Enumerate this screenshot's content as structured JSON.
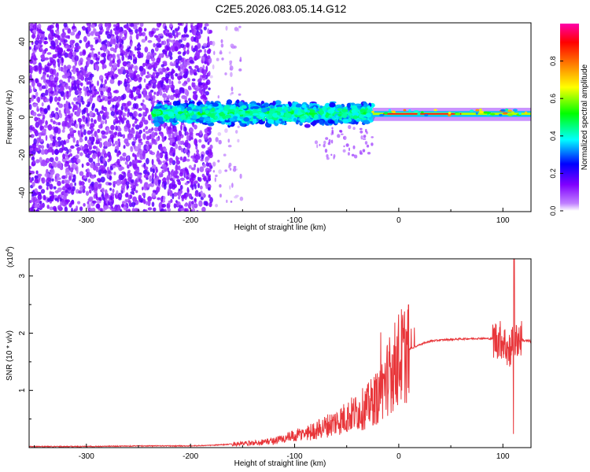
{
  "title": "C2E5.2026.083.05.14.G12",
  "chart_data": [
    {
      "type": "heatmap",
      "xlabel": "Height of straight line (km)",
      "ylabel": "Frequency (Hz)",
      "xlim": [
        -355,
        127
      ],
      "ylim": [
        -50,
        50
      ],
      "xticks": [
        -300,
        -200,
        -100,
        0,
        100
      ],
      "yticks": [
        -40,
        -20,
        0,
        20,
        40
      ],
      "colorbar": {
        "label": "Normalized spectral amplitude",
        "range": [
          0,
          1
        ],
        "ticks": [
          "0.0",
          "0.2",
          "0.4",
          "0.6",
          "0.8"
        ],
        "tick_values": [
          0.0,
          0.2,
          0.4,
          0.6,
          0.8
        ],
        "colors": [
          "#ffffff",
          "#c080ff",
          "#8000ff",
          "#0000ff",
          "#00ffff",
          "#00ff00",
          "#ffff00",
          "#ff8000",
          "#ff0000",
          "#ff00aa"
        ]
      },
      "regions": [
        {
          "name": "scattered noise",
          "x": [
            -355,
            -180
          ],
          "freq": [
            -50,
            50
          ],
          "amplitude": [
            0.05,
            0.18
          ]
        },
        {
          "name": "sparse noise tail",
          "x": [
            -180,
            -150
          ],
          "freq": [
            -50,
            50
          ],
          "amplitude": [
            0.02,
            0.08
          ]
        },
        {
          "name": "noisy signal band",
          "x": [
            -235,
            -25
          ],
          "freq": [
            -8,
            8
          ],
          "amplitude": [
            0.1,
            0.45
          ]
        },
        {
          "name": "faint drift",
          "x": [
            -80,
            -25
          ],
          "freq": [
            -22,
            -5
          ],
          "amplitude": [
            0.05,
            0.12
          ]
        },
        {
          "name": "tone band",
          "x": [
            -25,
            127
          ],
          "freq": [
            0,
            3
          ],
          "amplitude": [
            0.3,
            1.0
          ]
        }
      ]
    },
    {
      "type": "line",
      "xlabel": "Height of straight line (km)",
      "ylabel": "SNR (10 * v/v)",
      "y_multiplier": "(x10",
      "y_multiplier_exp": "4",
      "y_multiplier_close": ")",
      "xlim": [
        -355,
        127
      ],
      "ylim": [
        0,
        3.3
      ],
      "xticks": [
        -300,
        -200,
        -100,
        0,
        100
      ],
      "yticks": [
        1,
        2,
        3
      ],
      "color": "#e8363a",
      "series": [
        {
          "name": "SNR",
          "x": [
            -355,
            -300,
            -250,
            -200,
            -180,
            -160,
            -140,
            -120,
            -100,
            -80,
            -60,
            -40,
            -30,
            -20,
            -10,
            0,
            10,
            20,
            30,
            40,
            60,
            80,
            90,
            100,
            105,
            110,
            115,
            120,
            127
          ],
          "y": [
            0.02,
            0.02,
            0.03,
            0.03,
            0.04,
            0.06,
            0.08,
            0.12,
            0.2,
            0.3,
            0.45,
            0.62,
            0.72,
            0.9,
            1.25,
            1.55,
            1.72,
            1.8,
            1.86,
            1.88,
            1.9,
            1.91,
            1.9,
            1.88,
            1.7,
            1.85,
            1.92,
            1.87,
            1.86
          ]
        }
      ],
      "annotations": [
        {
          "label": "noise envelope",
          "x": [
            -100,
            15
          ],
          "y_upper": [
            0.3,
            2.15
          ]
        },
        {
          "label": "dropouts",
          "x": [
            104,
            112
          ],
          "y_lower": [
            0.1,
            0.1
          ]
        },
        {
          "label": "spike",
          "x": 111,
          "y": 3.3
        }
      ]
    }
  ]
}
